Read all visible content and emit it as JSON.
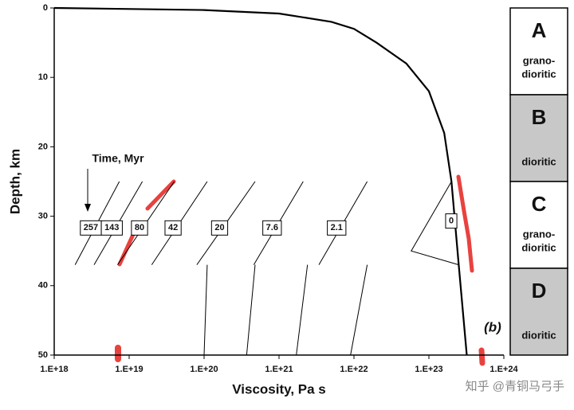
{
  "chart_data": {
    "type": "line",
    "x_label": "Viscosity, Pa s",
    "y_label": "Depth, km",
    "xlim": [
      1e+18,
      1e+24
    ],
    "x_log": true,
    "xticks": [
      {
        "value": 1e+18,
        "label": "1.E+18"
      },
      {
        "value": 1e+19,
        "label": "1.E+19"
      },
      {
        "value": 1e+20,
        "label": "1.E+20"
      },
      {
        "value": 1e+21,
        "label": "1.E+21"
      },
      {
        "value": 1e+22,
        "label": "1.E+22"
      },
      {
        "value": 1e+23,
        "label": "1.E+23"
      },
      {
        "value": 1e+24,
        "label": "1.E+24"
      }
    ],
    "ylim": [
      0,
      50
    ],
    "y_reversed": true,
    "yticks": [
      0,
      10,
      20,
      30,
      40,
      50
    ],
    "annotations": {
      "time_label": "Time, Myr",
      "panel": "(b)"
    },
    "series": [
      {
        "color": "#000000",
        "x": [
          1e+18,
          1e+20,
          1e+21,
          5e+21,
          1e+22,
          2e+22,
          5e+22,
          1e+23,
          1.6e+23,
          2e+23,
          2.5e+23,
          3.2e+23
        ],
        "values": [
          0,
          0.3,
          0.8,
          2,
          3,
          5,
          8,
          12,
          18,
          25,
          37,
          50
        ]
      },
      {
        "name": "257",
        "color": "#000000",
        "x": [
          7.4e+18,
          1.9e+18
        ],
        "values": [
          25,
          37
        ]
      },
      {
        "name": "143",
        "color": "#000000",
        "x": [
          1.5e+19,
          3.4e+18
        ],
        "values": [
          25,
          37
        ]
      },
      {
        "name": "80",
        "color": "#000000",
        "x": [
          4e+19,
          7e+18
        ],
        "values": [
          25,
          37
        ]
      },
      {
        "name": "42",
        "color": "#000000",
        "x": [
          1.1e+20,
          2e+19,
          null,
          1.1e+20,
          1e+20
        ],
        "values": [
          25,
          37,
          null,
          37,
          50
        ]
      },
      {
        "name": "20",
        "color": "#000000",
        "x": [
          4.8e+20,
          8e+19,
          null,
          4.8e+20,
          3.7e+20
        ],
        "values": [
          25,
          37,
          null,
          37,
          50
        ]
      },
      {
        "name": "7.6",
        "color": "#000000",
        "x": [
          2.1e+21,
          4.6e+20,
          null,
          2.4e+21,
          1.7e+21
        ],
        "values": [
          25,
          37,
          null,
          37,
          50
        ]
      },
      {
        "name": "2.1",
        "color": "#000000",
        "x": [
          1.5e+22,
          3.4e+21,
          null,
          1.5e+22,
          9e+21
        ],
        "values": [
          25,
          37,
          null,
          37,
          50
        ]
      },
      {
        "name": "0",
        "color": "#000000",
        "x": [
          2e+23,
          5.8e+22,
          2.5e+23
        ],
        "values": [
          25,
          35,
          37
        ]
      }
    ],
    "layers": [
      {
        "letter": "A",
        "lines": [
          "grano-",
          "dioritic"
        ],
        "color": "#ffffff"
      },
      {
        "letter": "B",
        "lines": [
          "dioritic"
        ],
        "color": "#c8c8c8"
      },
      {
        "letter": "C",
        "lines": [
          "grano-",
          "dioritic"
        ],
        "color": "#ffffff"
      },
      {
        "letter": "D",
        "lines": [
          "dioritic"
        ],
        "color": "#c8c8c8"
      }
    ]
  },
  "watermark": "知乎 @青铜马弓手"
}
